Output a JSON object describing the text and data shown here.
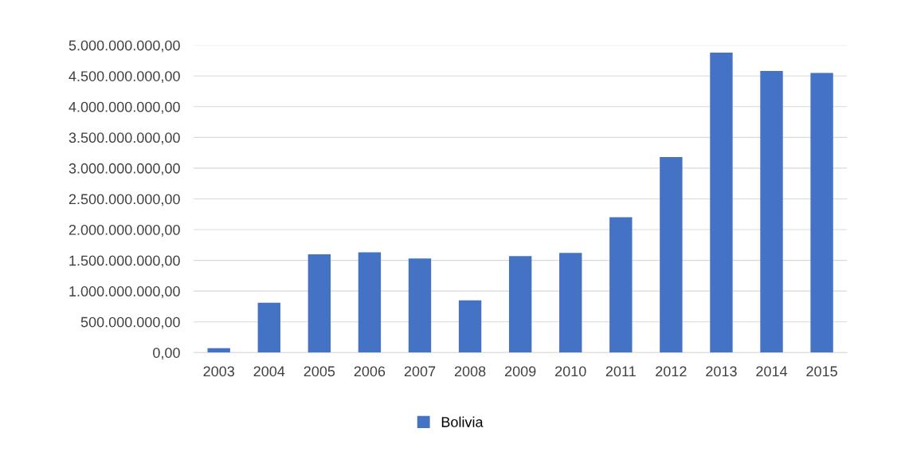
{
  "chart_data": {
    "type": "bar",
    "categories": [
      "2003",
      "2004",
      "2005",
      "2006",
      "2007",
      "2008",
      "2009",
      "2010",
      "2011",
      "2012",
      "2013",
      "2014",
      "2015"
    ],
    "series": [
      {
        "name": "Bolivia",
        "color": "#4472c4",
        "values": [
          70000000,
          810000000,
          1600000000,
          1630000000,
          1530000000,
          850000000,
          1570000000,
          1620000000,
          2200000000,
          3180000000,
          4880000000,
          4580000000,
          4550000000
        ]
      }
    ],
    "ylim": [
      0,
      5000000000
    ],
    "yticks": [
      {
        "value": 0,
        "label": "0,00"
      },
      {
        "value": 500000000,
        "label": "500.000.000,00"
      },
      {
        "value": 1000000000,
        "label": "1.000.000.000,00"
      },
      {
        "value": 1500000000,
        "label": "1.500.000.000,00"
      },
      {
        "value": 2000000000,
        "label": "2.000.000.000,00"
      },
      {
        "value": 2500000000,
        "label": "2.500.000.000,00"
      },
      {
        "value": 3000000000,
        "label": "3.000.000.000,00"
      },
      {
        "value": 3500000000,
        "label": "3.500.000.000,00"
      },
      {
        "value": 4000000000,
        "label": "4.000.000.000,00"
      },
      {
        "value": 4500000000,
        "label": "4.500.000.000,00"
      },
      {
        "value": 5000000000,
        "label": "5.000.000.000,00"
      }
    ],
    "grid": "y",
    "legend": "bottom"
  }
}
